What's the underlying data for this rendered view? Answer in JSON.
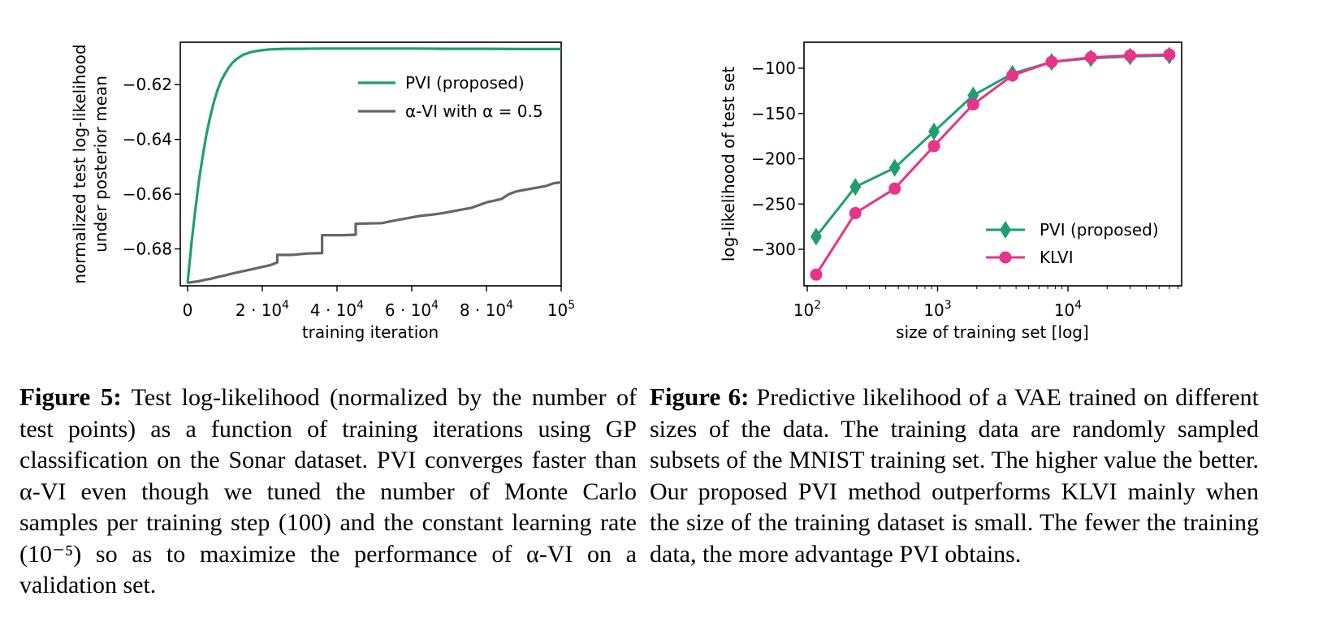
{
  "chart_data": [
    {
      "type": "line",
      "xlabel": "training iteration",
      "ylabel_lines": [
        "normalized test log-likelihood",
        "under posterior mean"
      ],
      "xlim": [
        0,
        100000
      ],
      "ylim": [
        -0.6935,
        -0.6045
      ],
      "x_ticks": [
        {
          "value": 0,
          "base": "0",
          "exp": ""
        },
        {
          "value": 20000,
          "base": "2 · 10",
          "exp": "4"
        },
        {
          "value": 40000,
          "base": "4 · 10",
          "exp": "4"
        },
        {
          "value": 60000,
          "base": "6 · 10",
          "exp": "4"
        },
        {
          "value": 80000,
          "base": "8 · 10",
          "exp": "4"
        },
        {
          "value": 100000,
          "base": "10",
          "exp": "5"
        }
      ],
      "y_ticks": [
        {
          "value": -0.62,
          "label": "−0.62"
        },
        {
          "value": -0.64,
          "label": "−0.64"
        },
        {
          "value": -0.66,
          "label": "−0.66"
        },
        {
          "value": -0.68,
          "label": "−0.68"
        }
      ],
      "legend": "top-right",
      "series": [
        {
          "name": "PVI (proposed)",
          "color": "#1f9e72",
          "x": [
            0,
            1000,
            2000,
            3000,
            4000,
            5000,
            6000,
            7000,
            8000,
            9000,
            10000,
            11000,
            12000,
            13000,
            14000,
            15000,
            17000,
            19000,
            22000,
            26000,
            30000,
            35000,
            40000,
            50000,
            60000,
            70000,
            80000,
            90000,
            100000
          ],
          "y": [
            -0.6925,
            -0.6785,
            -0.6665,
            -0.6555,
            -0.6465,
            -0.6385,
            -0.632,
            -0.6265,
            -0.622,
            -0.6185,
            -0.616,
            -0.6138,
            -0.612,
            -0.6108,
            -0.6098,
            -0.609,
            -0.6081,
            -0.6076,
            -0.6071,
            -0.6069,
            -0.6069,
            -0.6068,
            -0.6068,
            -0.6068,
            -0.6068,
            -0.6069,
            -0.6069,
            -0.607,
            -0.607
          ]
        },
        {
          "name": "α-VI with α = 0.5",
          "color": "#666666",
          "x": [
            0,
            1000,
            2000,
            3000,
            4000,
            5000,
            6000,
            8000,
            10000,
            12000,
            14000,
            16000,
            18000,
            20000,
            22000,
            24000,
            24000,
            28000,
            32000,
            36000,
            36000,
            42000,
            45000,
            45000,
            52000,
            54000,
            56000,
            58000,
            60000,
            62000,
            64000,
            66000,
            68000,
            70000,
            72000,
            74000,
            76000,
            78000,
            80000,
            82000,
            84000,
            86000,
            88000,
            90000,
            92000,
            94000,
            96000,
            98000,
            100000
          ],
          "y": [
            -0.6925,
            -0.6922,
            -0.692,
            -0.6918,
            -0.6915,
            -0.6912,
            -0.691,
            -0.6903,
            -0.6897,
            -0.689,
            -0.6884,
            -0.6878,
            -0.6872,
            -0.6866,
            -0.686,
            -0.685,
            -0.6822,
            -0.6822,
            -0.6817,
            -0.6815,
            -0.675,
            -0.675,
            -0.6748,
            -0.6708,
            -0.6706,
            -0.67,
            -0.6695,
            -0.669,
            -0.6685,
            -0.668,
            -0.6677,
            -0.6674,
            -0.667,
            -0.6665,
            -0.666,
            -0.6655,
            -0.665,
            -0.664,
            -0.663,
            -0.6624,
            -0.6618,
            -0.66,
            -0.659,
            -0.6585,
            -0.658,
            -0.6575,
            -0.657,
            -0.656,
            -0.6557
          ]
        }
      ]
    },
    {
      "type": "line",
      "xlabel": "size of training set [log]",
      "ylabel": "log-likelihood of test set",
      "x_scale": "log",
      "xlim": [
        100,
        70000
      ],
      "ylim": [
        -340,
        -72
      ],
      "x_ticks": [
        {
          "value": 100,
          "base": "10",
          "exp": "2"
        },
        {
          "value": 1000,
          "base": "10",
          "exp": "3"
        },
        {
          "value": 10000,
          "base": "10",
          "exp": "4"
        }
      ],
      "y_ticks": [
        {
          "value": -100,
          "label": "−100"
        },
        {
          "value": -150,
          "label": "−150"
        },
        {
          "value": -200,
          "label": "−200"
        },
        {
          "value": -250,
          "label": "−250"
        },
        {
          "value": -300,
          "label": "−300"
        }
      ],
      "legend": "bottom-right",
      "series": [
        {
          "name": "PVI (proposed)",
          "color": "#1f9e72",
          "marker": "diamond",
          "x": [
            117,
            234,
            469,
            938,
            1875,
            3750,
            7500,
            15000,
            30000,
            60000
          ],
          "y": [
            -286,
            -231,
            -210,
            -170,
            -130,
            -106,
            -93,
            -89,
            -87,
            -86
          ]
        },
        {
          "name": "KLVI",
          "color": "#e8338a",
          "marker": "circle",
          "x": [
            117,
            234,
            469,
            938,
            1875,
            3750,
            7500,
            15000,
            30000,
            60000
          ],
          "y": [
            -328,
            -260,
            -233,
            -186,
            -140,
            -108,
            -93,
            -88,
            -86,
            -85
          ]
        }
      ]
    }
  ],
  "captions": {
    "fig5_label": "Figure 5:",
    "fig5_text": "Test log-likelihood (normalized by the num­ber of test points) as a function of training iterations using GP classification on the Sonar dataset. PVI con­verges faster than α-VI even though we tuned the num­ber of Monte Carlo samples per training step (100) and the constant learning rate (10⁻⁵) so as to maximize the performance of α-VI on a validation set.",
    "fig6_label": "Figure 6:",
    "fig6_text": "Predictive likelihood of a VAE trained on different sizes of the data. The training data are ran­domly sampled subsets of the MNIST training set. The higher value the better. Our proposed PVI method out­performs KLVI mainly when the size of the training dataset is small. The fewer the training data, the more advantage PVI obtains."
  }
}
